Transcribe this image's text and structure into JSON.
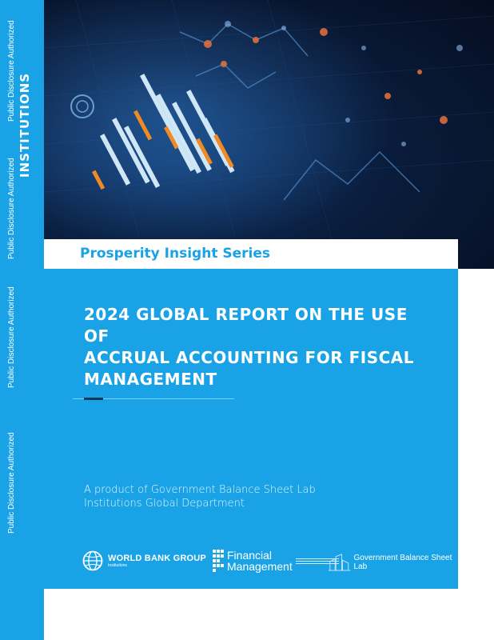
{
  "spine": {
    "title": "INSTITUTIONS",
    "disclosures": [
      "Public Disclosure Authorized",
      "Public Disclosure Authorized",
      "Public Disclosure Authorized",
      "Public Disclosure Authorized"
    ]
  },
  "cover": {
    "series": "Prosperity Insight Series",
    "title_lines": [
      "2024 GLOBAL REPORT ON THE USE OF",
      "ACCRUAL ACCOUNTING FOR FISCAL",
      "MANAGEMENT"
    ],
    "product_lines": [
      "A product of Government Balance Sheet Lab",
      "Institutions Global Department"
    ]
  },
  "logos": {
    "world_bank": {
      "name": "WORLD BANK GROUP",
      "sub": "Institutions",
      "icon": "globe-icon"
    },
    "financial_management": {
      "line1": "Financial",
      "line2": "Management",
      "icon": "grid-icon"
    },
    "gbs_lab": {
      "name": "Government Balance Sheet Lab",
      "icon": "building-icon"
    }
  },
  "colors": {
    "accent": "#19a3e6",
    "hero_dark": "#0a1d3d",
    "bar_orange": "#f08a24",
    "bar_light": "#cfe6f7"
  }
}
